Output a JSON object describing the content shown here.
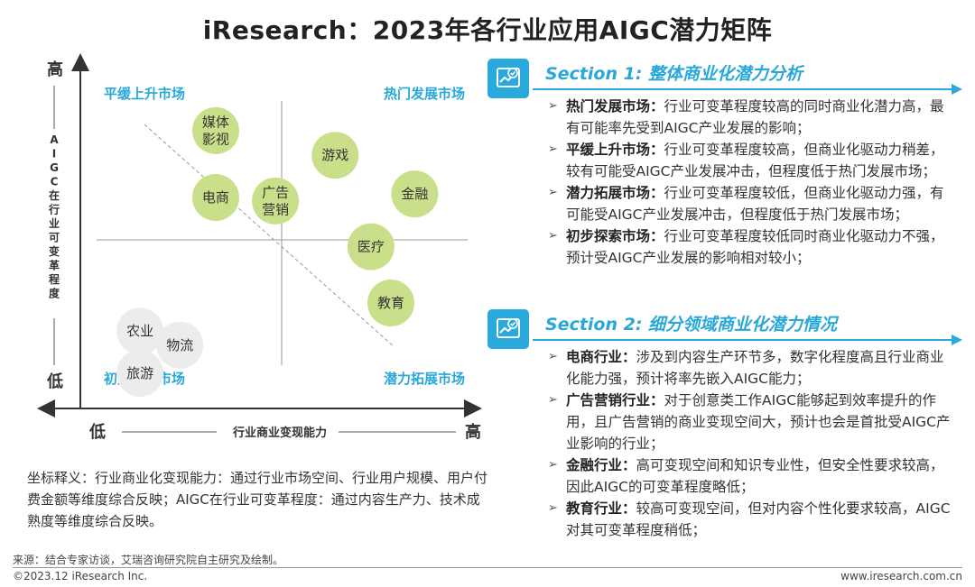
{
  "title": "iResearch：2023年各行业应用AIGC潜力矩阵",
  "chart_data": {
    "type": "scatter",
    "x_axis": {
      "label": "行业商业变现能力",
      "low": "低",
      "high": "高"
    },
    "y_axis": {
      "label": "AIGC在行业可变革程度",
      "low": "低",
      "high": "高"
    },
    "quadrants": {
      "top_left": "平缓上升市场",
      "top_right": "热门发展市场",
      "bottom_left": "初步探索市场",
      "bottom_right": "潜力拓展市场"
    },
    "points": [
      {
        "label": [
          "媒体",
          "影视"
        ],
        "x": 0.34,
        "y": 0.79,
        "group": "green"
      },
      {
        "label": [
          "电商"
        ],
        "x": 0.34,
        "y": 0.6,
        "group": "green"
      },
      {
        "label": [
          "广告",
          "营销"
        ],
        "x": 0.49,
        "y": 0.59,
        "group": "green"
      },
      {
        "label": [
          "游戏"
        ],
        "x": 0.64,
        "y": 0.72,
        "group": "green"
      },
      {
        "label": [
          "金融"
        ],
        "x": 0.84,
        "y": 0.61,
        "group": "green"
      },
      {
        "label": [
          "医疗"
        ],
        "x": 0.73,
        "y": 0.46,
        "group": "green"
      },
      {
        "label": [
          "教育"
        ],
        "x": 0.78,
        "y": 0.3,
        "group": "green"
      },
      {
        "label": [
          "农业"
        ],
        "x": 0.15,
        "y": 0.22,
        "group": "grey"
      },
      {
        "label": [
          "物流"
        ],
        "x": 0.25,
        "y": 0.18,
        "group": "grey"
      },
      {
        "label": [
          "旅游"
        ],
        "x": 0.15,
        "y": 0.1,
        "group": "grey"
      }
    ],
    "colors": {
      "green": "#c9df8a",
      "grey": "#ececec",
      "quadrant_label": "#29a8d8"
    }
  },
  "section1": {
    "title": "Section 1: 整体商业化潜力分析",
    "items": [
      {
        "head": "热门发展市场：",
        "text": "行业可变革程度较高的同时商业化潜力高，最有可能率先受到AIGC产业发展的影响；"
      },
      {
        "head": "平缓上升市场：",
        "text": "行业可变革程度较高，但商业化驱动力稍差，较有可能受AIGC产业发展冲击，但程度低于热门发展市场；"
      },
      {
        "head": "潜力拓展市场：",
        "text": "行业可变革程度较低，但商业化驱动力强，有可能受AIGC产业发展冲击，但程度低于热门发展市场；"
      },
      {
        "head": "初步探索市场：",
        "text": "行业可变革程度较低同时商业化驱动力不强，预计受AIGC产业发展的影响相对较小；"
      }
    ]
  },
  "section2": {
    "title": "Section 2: 细分领域商业化潜力情况",
    "items": [
      {
        "head": "电商行业：",
        "text": "涉及到内容生产环节多，数字化程度高且行业商业化能力强，预计将率先嵌入AIGC能力；"
      },
      {
        "head": "广告营销行业：",
        "text": "对于创意类工作AIGC能够起到效率提升的作用，且广告营销的商业变现空间大，预计也会是首批受AIGC产业影响的行业；"
      },
      {
        "head": "金融行业：",
        "text": "高可变现空间和知识专业性，但安全性要求较高，因此AIGC的可变革程度略低；"
      },
      {
        "head": "教育行业：",
        "text": "较高可变现空间，但对内容个性化要求较高，AIGC对其可变革程度稍低；"
      }
    ]
  },
  "note": "坐标释义：行业商业化变现能力：通过行业市场空间、行业用户规模、用户付费金额等维度综合反映；AIGC在行业可变革程度：通过内容生产力、技术成熟度等维度综合反映。",
  "footer": {
    "source": "来源：结合专家访谈，艾瑞咨询研究院自主研究及绘制。",
    "copyright": "©2023.12 iResearch Inc.",
    "website": "www.iresearch.com.cn"
  },
  "icons": {
    "section": "chart-check-icon",
    "bullet": "triangle-right-icon"
  }
}
